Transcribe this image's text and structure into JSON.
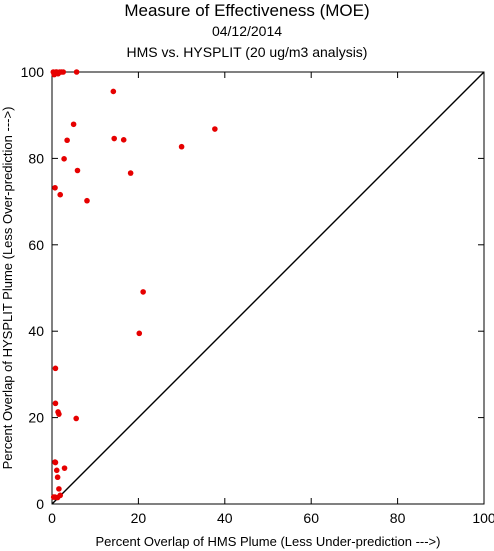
{
  "chart_data": {
    "type": "scatter",
    "title": "Measure of Effectiveness (MOE)",
    "subtitle": "04/12/2014",
    "subtitle2": "HMS vs. HYSPLIT  (20 ug/m3 analysis)",
    "xlabel": "Percent Overlap of HMS Plume (Less Under-prediction --->)",
    "ylabel": "Percent Overlap of HYSPLIT Plume (Less Over-prediction --->)",
    "xlim": [
      0,
      100
    ],
    "ylim": [
      0,
      100
    ],
    "xticks": [
      0,
      20,
      40,
      60,
      80,
      100
    ],
    "yticks": [
      0,
      20,
      40,
      60,
      80,
      100
    ],
    "reference_line": "y = x",
    "point_color": "#e60000",
    "series": [
      {
        "x": [
          0.3,
          0.5,
          0.9,
          1.1,
          1.4,
          1.8,
          2.2,
          2.6,
          5.7,
          14.2,
          14.4,
          16.6,
          37.7,
          30.0,
          5.0,
          3.5,
          2.8,
          5.9,
          18.2,
          0.7,
          1.9,
          8.1,
          21.1,
          20.2,
          0.8,
          0.8,
          1.4,
          1.6,
          5.6,
          0.7,
          0.8,
          1.1,
          1.3,
          1.6,
          1.9,
          2.9,
          0.4,
          0.7,
          1.3
        ],
        "y": [
          100.0,
          99.4,
          100.0,
          100.0,
          99.6,
          100.0,
          100.0,
          100.0,
          100.0,
          95.5,
          84.6,
          84.3,
          86.8,
          82.7,
          87.9,
          84.2,
          79.9,
          77.2,
          76.6,
          73.2,
          71.6,
          70.2,
          49.1,
          39.5,
          31.4,
          23.3,
          21.3,
          20.8,
          19.8,
          9.7,
          9.6,
          7.8,
          6.2,
          3.5,
          2.0,
          8.3,
          1.6,
          1.6,
          1.5
        ]
      }
    ]
  }
}
